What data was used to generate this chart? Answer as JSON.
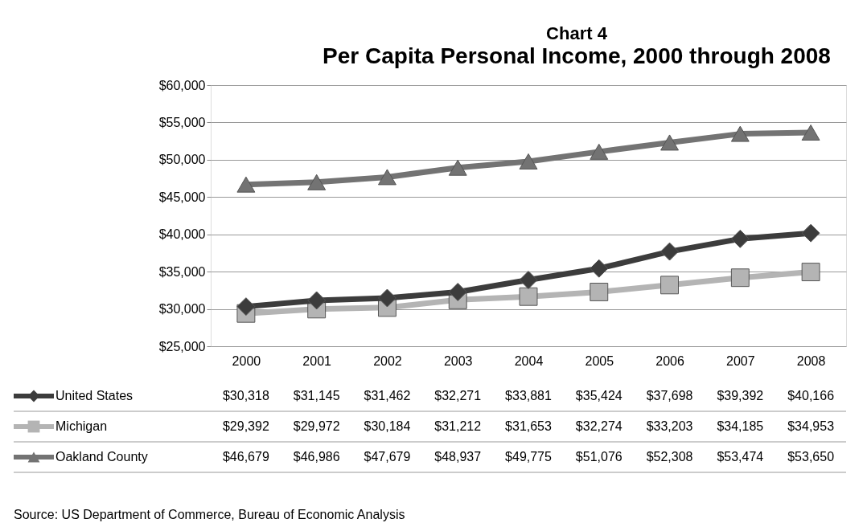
{
  "chart_data": {
    "type": "line",
    "title": "Chart 4",
    "subtitle": "Per Capita Personal Income, 2000 through 2008",
    "categories": [
      "2000",
      "2001",
      "2002",
      "2003",
      "2004",
      "2005",
      "2006",
      "2007",
      "2008"
    ],
    "series": [
      {
        "name": "United States",
        "color": "#3c3c3c",
        "marker": "diamond",
        "values": [
          30318,
          31145,
          31462,
          32271,
          33881,
          35424,
          37698,
          39392,
          40166
        ],
        "value_labels": [
          "$30,318",
          "$31,145",
          "$31,462",
          "$32,271",
          "$33,881",
          "$35,424",
          "$37,698",
          "$39,392",
          "$40,166"
        ]
      },
      {
        "name": "Michigan",
        "color": "#b4b4b4",
        "marker": "square",
        "values": [
          29392,
          29972,
          30184,
          31212,
          31653,
          32274,
          33203,
          34185,
          34953
        ],
        "value_labels": [
          "$29,392",
          "$29,972",
          "$30,184",
          "$31,212",
          "$31,653",
          "$32,274",
          "$33,203",
          "$34,185",
          "$34,953"
        ]
      },
      {
        "name": "Oakland County",
        "color": "#737373",
        "marker": "triangle",
        "values": [
          46679,
          46986,
          47679,
          48937,
          49775,
          51076,
          52308,
          53474,
          53650
        ],
        "value_labels": [
          "$46,679",
          "$46,986",
          "$47,679",
          "$48,937",
          "$49,775",
          "$51,076",
          "$52,308",
          "$53,474",
          "$53,650"
        ]
      }
    ],
    "ylim": [
      25000,
      60000
    ],
    "yticks": [
      {
        "value": 25000,
        "label": "$25,000"
      },
      {
        "value": 30000,
        "label": "$30,000"
      },
      {
        "value": 35000,
        "label": "$35,000"
      },
      {
        "value": 40000,
        "label": "$40,000"
      },
      {
        "value": 45000,
        "label": "$45,000"
      },
      {
        "value": 50000,
        "label": "$50,000"
      },
      {
        "value": 55000,
        "label": "$55,000"
      },
      {
        "value": 60000,
        "label": "$60,000"
      }
    ],
    "grid": "y",
    "legend": "bottom",
    "line_style": "solid",
    "annotations": [
      "Source:  US Department of Commerce, Bureau of Economic Analysis"
    ]
  }
}
